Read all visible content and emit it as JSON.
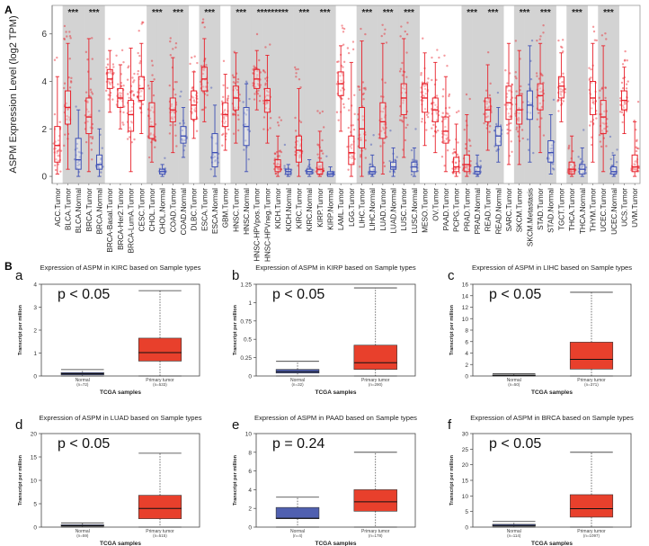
{
  "figure": {
    "panel_A_letter": "A",
    "panel_B_letter": "B"
  },
  "colors": {
    "tumor": "#e8212b",
    "normal": "#3d4fb5",
    "shade": "#d3d3d3",
    "box_red": "#e8402c",
    "box_blue": "#5060b0"
  },
  "chart_data": [
    {
      "type": "box",
      "id": "panelA",
      "ylabel": "ASPM Expression Level (log2 TPM)",
      "ylim": [
        -0.3,
        7.2
      ],
      "yticks": [
        0,
        2,
        4,
        6
      ],
      "significance_label": "***",
      "categories": [
        {
          "label": "ACC.Tumor",
          "group": "t",
          "q1": 0.6,
          "med": 1.3,
          "q3": 2.1,
          "lo": 0.1,
          "hi": 4.2,
          "shade": false,
          "sig": false
        },
        {
          "label": "BLCA.Tumor",
          "group": "t",
          "q1": 2.2,
          "med": 2.9,
          "q3": 3.6,
          "lo": 0.3,
          "hi": 5.6,
          "shade": true,
          "sig": true
        },
        {
          "label": "BLCA.Normal",
          "group": "n",
          "q1": 0.3,
          "med": 0.7,
          "q3": 1.6,
          "lo": 0.0,
          "hi": 2.8,
          "shade": true,
          "sig": false
        },
        {
          "label": "BRCA.Tumor",
          "group": "t",
          "q1": 1.8,
          "med": 2.5,
          "q3": 3.3,
          "lo": 0.2,
          "hi": 5.8,
          "shade": true,
          "sig": true
        },
        {
          "label": "BRCA.Normal",
          "group": "n",
          "q1": 0.3,
          "med": 0.5,
          "q3": 0.9,
          "lo": 0.0,
          "hi": 2.0,
          "shade": true,
          "sig": false
        },
        {
          "label": "BRCA-Basal.Tumor",
          "group": "t",
          "q1": 3.7,
          "med": 4.1,
          "q3": 4.5,
          "lo": 2.7,
          "hi": 5.3,
          "shade": false,
          "sig": false
        },
        {
          "label": "BRCA-Her2.Tumor",
          "group": "t",
          "q1": 2.9,
          "med": 3.3,
          "q3": 3.7,
          "lo": 2.0,
          "hi": 4.7,
          "shade": false,
          "sig": false
        },
        {
          "label": "BRCA-LumA.Tumor",
          "group": "t",
          "q1": 1.9,
          "med": 2.6,
          "q3": 3.2,
          "lo": 0.2,
          "hi": 5.4,
          "shade": false,
          "sig": false
        },
        {
          "label": "CESC.Tumor",
          "group": "t",
          "q1": 3.2,
          "med": 3.7,
          "q3": 4.2,
          "lo": 1.8,
          "hi": 5.6,
          "shade": false,
          "sig": false
        },
        {
          "label": "CHOL.Tumor",
          "group": "t",
          "q1": 1.6,
          "med": 2.1,
          "q3": 3.1,
          "lo": 0.6,
          "hi": 4.0,
          "shade": true,
          "sig": true
        },
        {
          "label": "CHOL.Normal",
          "group": "n",
          "q1": 0.1,
          "med": 0.2,
          "q3": 0.3,
          "lo": 0.0,
          "hi": 0.5,
          "shade": true,
          "sig": false
        },
        {
          "label": "COAD.Tumor",
          "group": "t",
          "q1": 2.3,
          "med": 2.8,
          "q3": 3.3,
          "lo": 1.0,
          "hi": 5.0,
          "shade": true,
          "sig": true
        },
        {
          "label": "COAD.Normal",
          "group": "n",
          "q1": 1.4,
          "med": 1.7,
          "q3": 2.1,
          "lo": 0.8,
          "hi": 2.9,
          "shade": true,
          "sig": false
        },
        {
          "label": "DLBC.Tumor",
          "group": "t",
          "q1": 2.4,
          "med": 3.0,
          "q3": 3.6,
          "lo": 1.6,
          "hi": 4.4,
          "shade": false,
          "sig": false
        },
        {
          "label": "ESCA.Tumor",
          "group": "t",
          "q1": 3.6,
          "med": 4.1,
          "q3": 4.6,
          "lo": 2.3,
          "hi": 5.8,
          "shade": true,
          "sig": true
        },
        {
          "label": "ESCA.Normal",
          "group": "n",
          "q1": 0.4,
          "med": 1.0,
          "q3": 1.8,
          "lo": 0.0,
          "hi": 3.0,
          "shade": true,
          "sig": false
        },
        {
          "label": "GBM.Tumor",
          "group": "t",
          "q1": 2.1,
          "med": 2.6,
          "q3": 3.1,
          "lo": 1.1,
          "hi": 4.3,
          "shade": false,
          "sig": false
        },
        {
          "label": "HNSC.Tumor",
          "group": "t",
          "q1": 2.8,
          "med": 3.3,
          "q3": 3.8,
          "lo": 1.4,
          "hi": 5.2,
          "shade": true,
          "sig": true
        },
        {
          "label": "HNSC.Normal",
          "group": "n",
          "q1": 1.3,
          "med": 2.1,
          "q3": 2.9,
          "lo": 0.2,
          "hi": 3.9,
          "shade": true,
          "sig": false
        },
        {
          "label": "HNSC-HPVpos.Tumor",
          "group": "t",
          "q1": 3.7,
          "med": 4.1,
          "q3": 4.5,
          "lo": 2.8,
          "hi": 5.3,
          "shade": true,
          "sig": true
        },
        {
          "label": "HNSC-HPVneg.Tumor",
          "group": "t",
          "q1": 2.7,
          "med": 3.2,
          "q3": 3.7,
          "lo": 1.4,
          "hi": 5.1,
          "shade": true,
          "sig": true
        },
        {
          "label": "KICH.Tumor",
          "group": "t",
          "q1": 0.2,
          "med": 0.4,
          "q3": 0.7,
          "lo": 0.0,
          "hi": 1.7,
          "shade": true,
          "sig": true
        },
        {
          "label": "KICH.Normal",
          "group": "n",
          "q1": 0.1,
          "med": 0.2,
          "q3": 0.3,
          "lo": 0.0,
          "hi": 0.5,
          "shade": true,
          "sig": false
        },
        {
          "label": "KIRC.Tumor",
          "group": "t",
          "q1": 0.6,
          "med": 1.1,
          "q3": 1.7,
          "lo": 0.0,
          "hi": 3.7,
          "shade": true,
          "sig": true
        },
        {
          "label": "KIRC.Normal",
          "group": "n",
          "q1": 0.1,
          "med": 0.2,
          "q3": 0.3,
          "lo": 0.0,
          "hi": 0.7,
          "shade": true,
          "sig": false
        },
        {
          "label": "KIRP.Tumor",
          "group": "t",
          "q1": 0.1,
          "med": 0.3,
          "q3": 0.6,
          "lo": 0.0,
          "hi": 1.9,
          "shade": true,
          "sig": true
        },
        {
          "label": "KIRP.Normal",
          "group": "n",
          "q1": 0.0,
          "med": 0.1,
          "q3": 0.2,
          "lo": 0.0,
          "hi": 0.4,
          "shade": true,
          "sig": false
        },
        {
          "label": "LAML.Tumor",
          "group": "t",
          "q1": 3.4,
          "med": 3.9,
          "q3": 4.4,
          "lo": 1.9,
          "hi": 5.5,
          "shade": false,
          "sig": false
        },
        {
          "label": "LGG.Tumor",
          "group": "t",
          "q1": 0.5,
          "med": 1.0,
          "q3": 1.7,
          "lo": 0.0,
          "hi": 4.8,
          "shade": false,
          "sig": false
        },
        {
          "label": "LIHC.Tumor",
          "group": "t",
          "q1": 1.2,
          "med": 2.0,
          "q3": 2.9,
          "lo": 0.0,
          "hi": 5.7,
          "shade": true,
          "sig": true
        },
        {
          "label": "LIHC.Normal",
          "group": "n",
          "q1": 0.1,
          "med": 0.2,
          "q3": 0.4,
          "lo": 0.0,
          "hi": 0.9,
          "shade": true,
          "sig": false
        },
        {
          "label": "LUAD.Tumor",
          "group": "t",
          "q1": 1.6,
          "med": 2.3,
          "q3": 3.1,
          "lo": 0.1,
          "hi": 5.6,
          "shade": true,
          "sig": true
        },
        {
          "label": "LUAD.Normal",
          "group": "n",
          "q1": 0.3,
          "med": 0.4,
          "q3": 0.6,
          "lo": 0.0,
          "hi": 1.2,
          "shade": true,
          "sig": false
        },
        {
          "label": "LUSC.Tumor",
          "group": "t",
          "q1": 2.6,
          "med": 3.3,
          "q3": 3.9,
          "lo": 0.8,
          "hi": 5.8,
          "shade": true,
          "sig": true
        },
        {
          "label": "LUSC.Normal",
          "group": "n",
          "q1": 0.2,
          "med": 0.4,
          "q3": 0.6,
          "lo": 0.0,
          "hi": 1.2,
          "shade": true,
          "sig": false
        },
        {
          "label": "MESO.Tumor",
          "group": "t",
          "q1": 2.7,
          "med": 3.3,
          "q3": 3.9,
          "lo": 1.3,
          "hi": 5.2,
          "shade": false,
          "sig": false
        },
        {
          "label": "OV.Tumor",
          "group": "t",
          "q1": 2.3,
          "med": 2.8,
          "q3": 3.3,
          "lo": 1.0,
          "hi": 4.8,
          "shade": false,
          "sig": false
        },
        {
          "label": "PAAD.Tumor",
          "group": "t",
          "q1": 1.4,
          "med": 1.9,
          "q3": 2.5,
          "lo": 0.2,
          "hi": 4.2,
          "shade": false,
          "sig": false
        },
        {
          "label": "PCPG.Tumor",
          "group": "t",
          "q1": 0.2,
          "med": 0.4,
          "q3": 0.8,
          "lo": 0.0,
          "hi": 2.2,
          "shade": false,
          "sig": false
        },
        {
          "label": "PRAD.Tumor",
          "group": "t",
          "q1": 0.2,
          "med": 0.5,
          "q3": 0.9,
          "lo": 0.0,
          "hi": 2.6,
          "shade": true,
          "sig": true
        },
        {
          "label": "PRAD.Normal",
          "group": "n",
          "q1": 0.1,
          "med": 0.2,
          "q3": 0.4,
          "lo": 0.0,
          "hi": 0.9,
          "shade": true,
          "sig": false
        },
        {
          "label": "READ.Tumor",
          "group": "t",
          "q1": 2.3,
          "med": 2.8,
          "q3": 3.3,
          "lo": 1.1,
          "hi": 4.7,
          "shade": true,
          "sig": true
        },
        {
          "label": "READ.Normal",
          "group": "n",
          "q1": 1.3,
          "med": 1.7,
          "q3": 2.1,
          "lo": 0.6,
          "hi": 2.9,
          "shade": true,
          "sig": false
        },
        {
          "label": "SARC.Tumor",
          "group": "t",
          "q1": 2.4,
          "med": 3.1,
          "q3": 3.8,
          "lo": 0.5,
          "hi": 5.6,
          "shade": false,
          "sig": false
        },
        {
          "label": "SKCM.Tumor",
          "group": "t",
          "q1": 2.2,
          "med": 2.8,
          "q3": 3.4,
          "lo": 0.5,
          "hi": 5.3,
          "shade": true,
          "sig": true
        },
        {
          "label": "SKCM.Metastasis",
          "group": "n",
          "q1": 2.4,
          "med": 3.0,
          "q3": 3.6,
          "lo": 0.6,
          "hi": 5.5,
          "shade": true,
          "sig": false
        },
        {
          "label": "STAD.Tumor",
          "group": "t",
          "q1": 2.8,
          "med": 3.4,
          "q3": 3.9,
          "lo": 1.0,
          "hi": 5.6,
          "shade": true,
          "sig": true
        },
        {
          "label": "STAD.Normal",
          "group": "n",
          "q1": 0.6,
          "med": 1.0,
          "q3": 1.5,
          "lo": 0.1,
          "hi": 2.6,
          "shade": true,
          "sig": false
        },
        {
          "label": "TGCT.Tumor",
          "group": "t",
          "q1": 3.3,
          "med": 3.8,
          "q3": 4.2,
          "lo": 2.3,
          "hi": 5.2,
          "shade": false,
          "sig": false
        },
        {
          "label": "THCA.Tumor",
          "group": "t",
          "q1": 0.1,
          "med": 0.3,
          "q3": 0.6,
          "lo": 0.0,
          "hi": 1.7,
          "shade": true,
          "sig": true
        },
        {
          "label": "THCA.Normal",
          "group": "n",
          "q1": 0.1,
          "med": 0.3,
          "q3": 0.5,
          "lo": 0.0,
          "hi": 1.2,
          "shade": true,
          "sig": false
        },
        {
          "label": "THYM.Tumor",
          "group": "t",
          "q1": 2.6,
          "med": 3.3,
          "q3": 4.0,
          "lo": 0.6,
          "hi": 5.6,
          "shade": false,
          "sig": false
        },
        {
          "label": "UCEC.Tumor",
          "group": "t",
          "q1": 1.8,
          "med": 2.5,
          "q3": 3.2,
          "lo": 0.2,
          "hi": 5.5,
          "shade": true,
          "sig": true
        },
        {
          "label": "UCEC.Normal",
          "group": "n",
          "q1": 0.1,
          "med": 0.2,
          "q3": 0.4,
          "lo": 0.0,
          "hi": 0.9,
          "shade": true,
          "sig": false
        },
        {
          "label": "UCS.Tumor",
          "group": "t",
          "q1": 2.8,
          "med": 3.2,
          "q3": 3.6,
          "lo": 1.8,
          "hi": 4.6,
          "shade": false,
          "sig": false
        },
        {
          "label": "UVM.Tumor",
          "group": "t",
          "q1": 0.2,
          "med": 0.4,
          "q3": 0.9,
          "lo": 0.0,
          "hi": 2.3,
          "shade": false,
          "sig": false
        }
      ]
    },
    {
      "type": "box",
      "id": "b-a",
      "letter": "a",
      "title": "Expression of ASPM in KIRC based on Sample types",
      "pvalue": "p < 0.05",
      "ylabel": "Transcript per million",
      "xlabel": "TCGA samples",
      "ylim": [
        0,
        4
      ],
      "yticks": [
        0,
        1,
        2,
        3,
        4
      ],
      "boxes": [
        {
          "name": "Normal",
          "n": "(n=72)",
          "color": "normal",
          "lo": 0.0,
          "q1": 0.05,
          "med": 0.1,
          "q3": 0.15,
          "hi": 0.28
        },
        {
          "name": "Primary tumor",
          "n": "(n=533)",
          "color": "tumor",
          "lo": 0.0,
          "q1": 0.65,
          "med": 1.02,
          "q3": 1.65,
          "hi": 3.72
        }
      ]
    },
    {
      "type": "box",
      "id": "b-b",
      "letter": "b",
      "title": "Expression of ASPM in KIRP based on Sample types",
      "pvalue": "p < 0.05",
      "ylabel": "Transcript per million",
      "xlabel": "TCGA samples",
      "ylim": [
        0,
        1.25
      ],
      "yticks": [
        0,
        0.25,
        0.5,
        0.75,
        1,
        1.25
      ],
      "boxes": [
        {
          "name": "Normal",
          "n": "(n=32)",
          "color": "normal",
          "lo": 0.0,
          "q1": 0.04,
          "med": 0.06,
          "q3": 0.09,
          "hi": 0.2
        },
        {
          "name": "Primary tumor",
          "n": "(n=290)",
          "color": "tumor",
          "lo": 0.0,
          "q1": 0.09,
          "med": 0.18,
          "q3": 0.42,
          "hi": 1.2
        }
      ]
    },
    {
      "type": "box",
      "id": "b-c",
      "letter": "c",
      "title": "Expression of ASPM in LIHC based on Sample types",
      "pvalue": "p < 0.05",
      "ylabel": "Transcript per million",
      "xlabel": "TCGA samples",
      "ylim": [
        0,
        16
      ],
      "yticks": [
        0,
        2,
        4,
        6,
        8,
        10,
        12,
        14,
        16
      ],
      "boxes": [
        {
          "name": "Normal",
          "n": "(n=50)",
          "color": "normal",
          "lo": 0.0,
          "q1": 0.05,
          "med": 0.1,
          "q3": 0.18,
          "hi": 0.38
        },
        {
          "name": "Primary tumor",
          "n": "(n=371)",
          "color": "tumor",
          "lo": 0.0,
          "q1": 1.2,
          "med": 2.9,
          "q3": 5.9,
          "hi": 14.6
        }
      ]
    },
    {
      "type": "box",
      "id": "b-d",
      "letter": "d",
      "title": "Expression of ASPM in LUAD based on Sample types",
      "pvalue": "p < 0.05",
      "ylabel": "Transcript per million",
      "xlabel": "TCGA samples",
      "ylim": [
        0,
        20
      ],
      "yticks": [
        0,
        5,
        10,
        15,
        20
      ],
      "boxes": [
        {
          "name": "Normal",
          "n": "(n=59)",
          "color": "normal",
          "lo": 0.0,
          "q1": 0.2,
          "med": 0.3,
          "q3": 0.5,
          "hi": 0.9
        },
        {
          "name": "Primary tumor",
          "n": "(n=515)",
          "color": "tumor",
          "lo": 0.0,
          "q1": 1.8,
          "med": 4.0,
          "q3": 6.8,
          "hi": 15.8
        }
      ]
    },
    {
      "type": "box",
      "id": "b-e",
      "letter": "e",
      "title": "Expression of ASPM in PAAD based on Sample types",
      "pvalue": "p = 0.24",
      "ylabel": "Transcript per million",
      "xlabel": "TCGA samples",
      "ylim": [
        0,
        10
      ],
      "yticks": [
        0,
        2,
        4,
        6,
        8,
        10
      ],
      "boxes": [
        {
          "name": "Normal",
          "n": "(n=4)",
          "color": "normal",
          "lo": 0.0,
          "q1": 0.9,
          "med": 0.95,
          "q3": 2.1,
          "hi": 3.2
        },
        {
          "name": "Primary tumor",
          "n": "(n=178)",
          "color": "tumor",
          "lo": 0.0,
          "q1": 1.7,
          "med": 2.7,
          "q3": 4.0,
          "hi": 8.0
        }
      ]
    },
    {
      "type": "box",
      "id": "b-f",
      "letter": "f",
      "title": "Expression of ASPM in BRCA based on Sample types",
      "pvalue": "p < 0.05",
      "ylabel": "Transcript per million",
      "xlabel": "TCGA samples",
      "ylim": [
        0,
        30
      ],
      "yticks": [
        0,
        5,
        10,
        15,
        20,
        25,
        30
      ],
      "boxes": [
        {
          "name": "Normal",
          "n": "(n=114)",
          "color": "normal",
          "lo": 0.0,
          "q1": 0.3,
          "med": 0.5,
          "q3": 0.9,
          "hi": 1.8
        },
        {
          "name": "Primary tumor",
          "n": "(n=1097)",
          "color": "tumor",
          "lo": 0.0,
          "q1": 3.2,
          "med": 5.9,
          "q3": 10.4,
          "hi": 24.0
        }
      ]
    }
  ]
}
